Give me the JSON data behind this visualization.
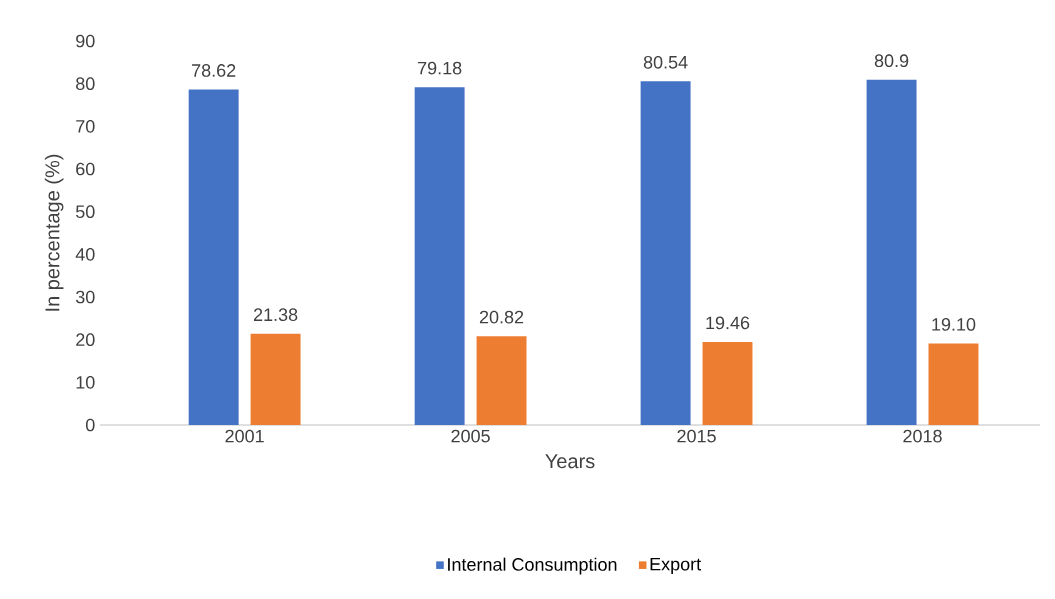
{
  "chart_data": {
    "type": "bar",
    "xlabel": "Years",
    "ylabel": "In percentage (%)",
    "categories": [
      "2001",
      "2005",
      "2015",
      "2018"
    ],
    "series": [
      {
        "name": "Internal Consumption",
        "color": "#4472c4",
        "values": [
          78.62,
          79.18,
          80.54,
          80.9
        ],
        "value_labels": [
          "78.62",
          "79.18",
          "80.54",
          "80.9"
        ]
      },
      {
        "name": "Export",
        "color": "#ed7d31",
        "values": [
          21.38,
          20.82,
          19.46,
          19.1
        ],
        "value_labels": [
          "21.38",
          "20.82",
          "19.46",
          "19.10"
        ]
      }
    ],
    "ylim": [
      0,
      90
    ],
    "yticks": [
      0,
      10,
      20,
      30,
      40,
      50,
      60,
      70,
      80,
      90
    ],
    "grid": false,
    "legend": "bottom"
  }
}
